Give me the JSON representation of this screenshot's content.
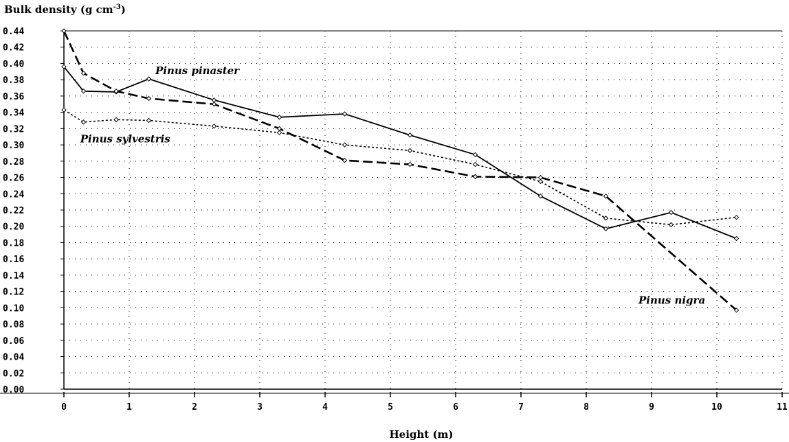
{
  "chart_data": {
    "type": "line",
    "ylabel_text": "Bulk density (g cm",
    "ylabel_sup": "-3",
    "ylabel_end": ")",
    "xlabel": "Height (m)",
    "xlim": [
      0,
      11
    ],
    "ylim": [
      0,
      0.44
    ],
    "x_ticks": [
      "0",
      "1",
      "2",
      "3",
      "4",
      "5",
      "6",
      "7",
      "8",
      "9",
      "10",
      "11"
    ],
    "y_ticks": [
      "0.00",
      "0.02",
      "0.04",
      "0.06",
      "0.08",
      "0.10",
      "0.12",
      "0.14",
      "0.16",
      "0.18",
      "0.20",
      "0.22",
      "0.24",
      "0.26",
      "0.28",
      "0.30",
      "0.32",
      "0.34",
      "0.36",
      "0.38",
      "0.40",
      "0.42",
      "0.44"
    ],
    "grid": true,
    "annotations": [
      {
        "text": "Pinus pinaster",
        "x": 1.4,
        "y": 0.387
      },
      {
        "text": "Pinus sylvestris",
        "x": 0.25,
        "y": 0.303
      },
      {
        "text": "Pinus nigra",
        "x": 8.8,
        "y": 0.105
      }
    ],
    "series": [
      {
        "name": "Pinus pinaster",
        "style": "solid",
        "x": [
          0,
          0.3,
          0.8,
          1.3,
          2.3,
          3.3,
          4.3,
          5.3,
          6.3,
          7.3,
          8.3,
          9.3,
          10.3
        ],
        "y": [
          0.396,
          0.366,
          0.365,
          0.381,
          0.355,
          0.334,
          0.338,
          0.312,
          0.288,
          0.237,
          0.197,
          0.217,
          0.185
        ]
      },
      {
        "name": "Pinus sylvestris",
        "style": "dotted",
        "x": [
          0,
          0.3,
          0.8,
          1.3,
          2.3,
          3.3,
          4.3,
          5.3,
          6.3,
          7.3,
          8.3,
          9.3,
          10.3
        ],
        "y": [
          0.343,
          0.328,
          0.331,
          0.33,
          0.323,
          0.315,
          0.3,
          0.293,
          0.276,
          0.255,
          0.21,
          0.202,
          0.211
        ]
      },
      {
        "name": "Pinus nigra",
        "style": "dashed",
        "x": [
          0,
          0.3,
          0.8,
          1.3,
          2.3,
          3.3,
          4.3,
          5.3,
          6.3,
          7.3,
          8.3,
          10.3
        ],
        "y": [
          0.44,
          0.388,
          0.366,
          0.357,
          0.35,
          0.32,
          0.281,
          0.276,
          0.261,
          0.26,
          0.237,
          0.097
        ]
      }
    ]
  }
}
